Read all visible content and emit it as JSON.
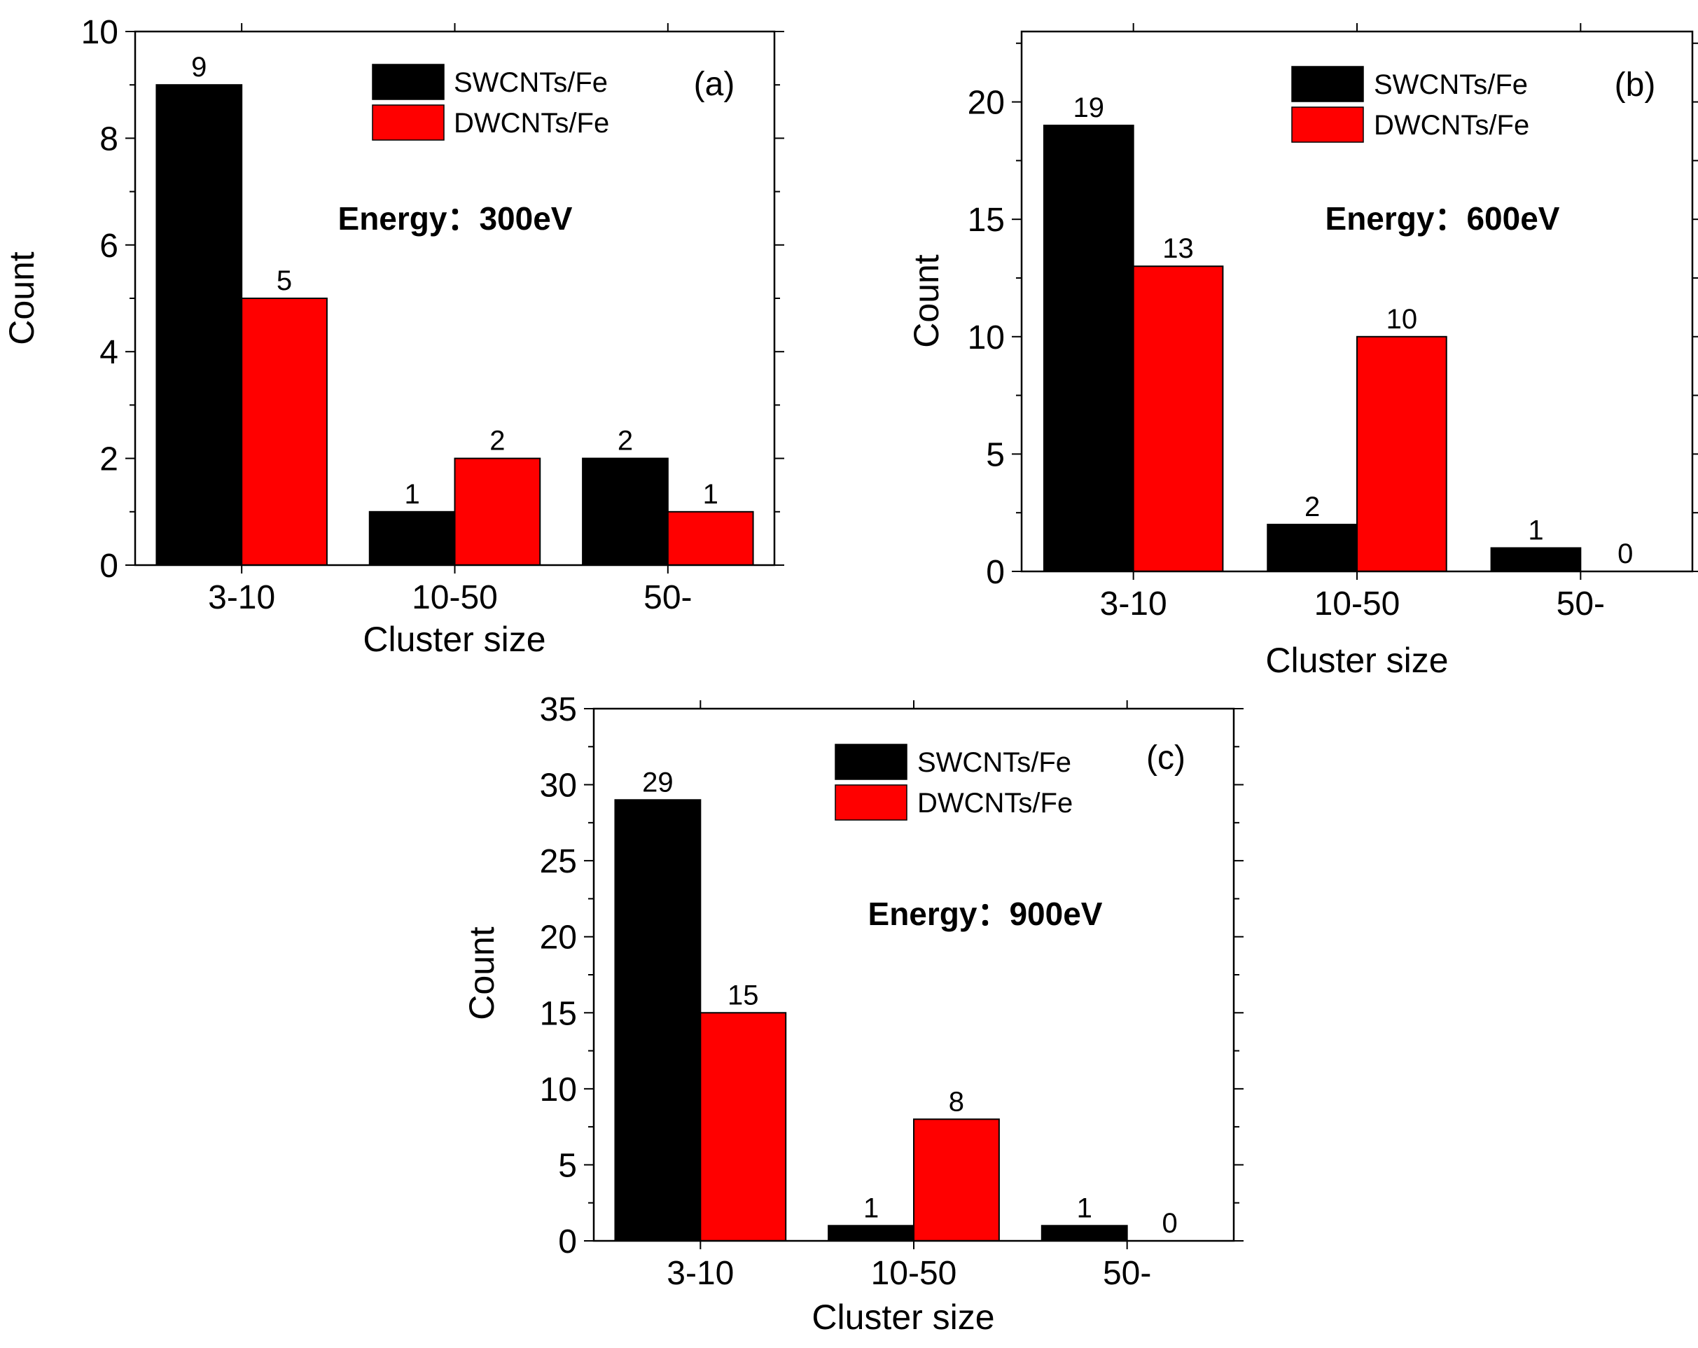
{
  "chart_data": [
    {
      "type": "bar",
      "panel_label": "(a)",
      "annotation": "Energy：300eV",
      "xlabel": "Cluster size",
      "ylabel": "Count",
      "categories": [
        "3-10",
        "10-50",
        "50-"
      ],
      "ylim": [
        0,
        10
      ],
      "yticks": [
        0,
        2,
        4,
        6,
        8,
        10
      ],
      "series": [
        {
          "name": "SWCNTs/Fe",
          "color": "#000000",
          "values": [
            9,
            1,
            2
          ]
        },
        {
          "name": "DWCNTs/Fe",
          "color": "#ff0000",
          "values": [
            5,
            2,
            1
          ]
        }
      ],
      "legend": "top-right",
      "grid": false
    },
    {
      "type": "bar",
      "panel_label": "(b)",
      "annotation": "Energy：600eV",
      "xlabel": "Cluster size",
      "ylabel": "Count",
      "categories": [
        "3-10",
        "10-50",
        "50-"
      ],
      "ylim": [
        0,
        23
      ],
      "yticks": [
        0,
        5,
        10,
        15,
        20
      ],
      "series": [
        {
          "name": "SWCNTs/Fe",
          "color": "#000000",
          "values": [
            19,
            2,
            1
          ]
        },
        {
          "name": "DWCNTs/Fe",
          "color": "#ff0000",
          "values": [
            13,
            10,
            0
          ]
        }
      ],
      "legend": "top-right",
      "grid": false
    },
    {
      "type": "bar",
      "panel_label": "(c)",
      "annotation": "Energy：900eV",
      "xlabel": "Cluster size",
      "ylabel": "Count",
      "categories": [
        "3-10",
        "10-50",
        "50-"
      ],
      "ylim": [
        0,
        35
      ],
      "yticks": [
        0,
        5,
        10,
        15,
        20,
        25,
        30,
        35
      ],
      "series": [
        {
          "name": "SWCNTs/Fe",
          "color": "#000000",
          "values": [
            29,
            1,
            1
          ]
        },
        {
          "name": "DWCNTs/Fe",
          "color": "#ff0000",
          "values": [
            15,
            8,
            0
          ]
        }
      ],
      "legend": "top-right",
      "grid": false
    }
  ]
}
